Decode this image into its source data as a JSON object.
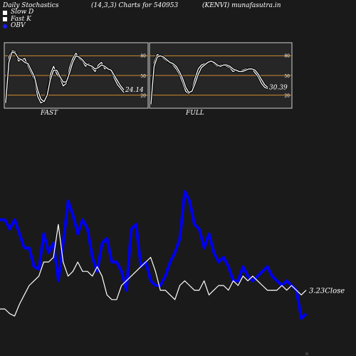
{
  "header": {
    "left": "Daily Stochastics",
    "center": "(14,3,3) Charts for 540953",
    "right": "(KENVI) munafasutra.in"
  },
  "legend": [
    {
      "label": "Slow  D",
      "color": "#ffffff"
    },
    {
      "label": "Fast  K",
      "color": "#ffffff"
    },
    {
      "label": "OBV",
      "color": "#1a1aff"
    }
  ],
  "colors": {
    "background": "#1a1a1a",
    "panel": "#262626",
    "level_line": "#d08a2e",
    "obv": "#0000ee",
    "price": "#ffffff"
  },
  "chart_data": [
    {
      "type": "line",
      "title": "FAST",
      "ylim": [
        0,
        100
      ],
      "yticks": [
        "80",
        "50",
        "20"
      ],
      "levels": [
        80,
        50,
        20
      ],
      "last_value_label": "24.14",
      "series": [
        {
          "values": [
            10,
            78,
            88,
            86,
            72,
            74,
            76,
            64,
            54,
            44,
            18,
            8,
            11,
            22,
            52,
            64,
            52,
            46,
            34,
            38,
            62,
            76,
            84,
            76,
            72,
            64,
            68,
            62,
            56,
            66,
            70,
            60,
            62,
            56,
            46,
            36,
            30,
            24
          ]
        },
        {
          "values": [
            8,
            70,
            86,
            84,
            76,
            74,
            70,
            68,
            58,
            48,
            28,
            14,
            10,
            20,
            44,
            58,
            58,
            48,
            40,
            40,
            54,
            70,
            80,
            78,
            74,
            68,
            66,
            64,
            60,
            62,
            66,
            64,
            60,
            58,
            50,
            42,
            34,
            28
          ]
        }
      ]
    },
    {
      "type": "line",
      "title": "FULL",
      "ylim": [
        0,
        100
      ],
      "yticks": [
        "80",
        "50",
        "20"
      ],
      "levels": [
        80,
        50,
        20
      ],
      "last_value_label": "30.39",
      "series": [
        {
          "values": [
            8,
            70,
            82,
            80,
            76,
            72,
            70,
            66,
            60,
            52,
            40,
            26,
            22,
            28,
            46,
            60,
            66,
            68,
            70,
            72,
            68,
            64,
            66,
            66,
            64,
            62,
            56,
            58,
            56,
            58,
            60,
            60,
            60,
            54,
            48,
            38,
            32,
            30
          ]
        },
        {
          "values": [
            6,
            64,
            78,
            80,
            78,
            74,
            70,
            68,
            64,
            56,
            46,
            32,
            24,
            26,
            38,
            52,
            62,
            66,
            70,
            72,
            70,
            66,
            64,
            66,
            66,
            64,
            60,
            58,
            56,
            56,
            58,
            60,
            60,
            58,
            52,
            44,
            36,
            32
          ]
        }
      ]
    },
    {
      "type": "line",
      "last_value_label": "3.23",
      "series_label": "Close",
      "series": [
        {
          "name": "OBV",
          "values": [
            58,
            58,
            54,
            58,
            52,
            46,
            46,
            38,
            37,
            52,
            44,
            48,
            32,
            48,
            66,
            60,
            52,
            58,
            54,
            42,
            36,
            48,
            50,
            40,
            40,
            36,
            28,
            54,
            56,
            38,
            40,
            32,
            30,
            30,
            34,
            40,
            44,
            50,
            70,
            66,
            56,
            54,
            46,
            52,
            44,
            40,
            42,
            38,
            32,
            32,
            38,
            34,
            32,
            34,
            36,
            38,
            34,
            32,
            30,
            32,
            30,
            28,
            16,
            18
          ]
        },
        {
          "name": "Close",
          "values": [
            20,
            20,
            18,
            17,
            22,
            26,
            30,
            32,
            34,
            40,
            40,
            42,
            56,
            40,
            34,
            36,
            40,
            36,
            36,
            34,
            38,
            34,
            26,
            24,
            24,
            30,
            32,
            34,
            36,
            38,
            40,
            42,
            36,
            28,
            28,
            26,
            24,
            30,
            32,
            30,
            28,
            28,
            32,
            26,
            28,
            30,
            30,
            28,
            32,
            30,
            34,
            32,
            34,
            32,
            30,
            28,
            28,
            28,
            30,
            28,
            30,
            28,
            26,
            28
          ]
        }
      ]
    }
  ]
}
